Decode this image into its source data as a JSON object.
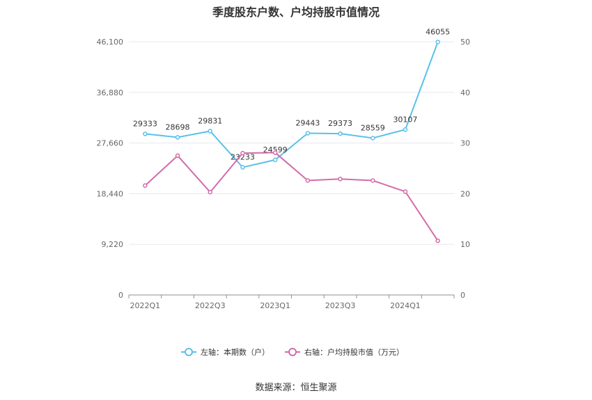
{
  "title": "季度股东户数、户均持股市值情况",
  "source": "数据来源：恒生聚源",
  "chart_data": {
    "type": "line",
    "x": [
      "2022Q1",
      "2022Q2",
      "2022Q3",
      "2022Q4",
      "2023Q1",
      "2023Q2",
      "2023Q3",
      "2023Q4",
      "2024Q1",
      "2024Q2"
    ],
    "x_tick_labels": [
      "2022Q1",
      "2022Q3",
      "2023Q1",
      "2023Q3",
      "2024Q1"
    ],
    "y_left": {
      "ticks": [
        0,
        9220,
        18440,
        27660,
        36880,
        46100
      ],
      "tick_labels": [
        "0",
        "9,220",
        "18,440",
        "27,660",
        "36,880",
        "46,100"
      ],
      "ylim": [
        0,
        46100
      ]
    },
    "y_right": {
      "ticks": [
        0,
        10,
        20,
        30,
        40,
        50
      ],
      "tick_labels": [
        "0",
        "10",
        "20",
        "30",
        "40",
        "50"
      ],
      "ylim": [
        0,
        50
      ]
    },
    "series": [
      {
        "name": "左轴：本期数（户）",
        "axis": "left",
        "color": "#5bc0eb",
        "values": [
          29333,
          28698,
          29831,
          23233,
          24599,
          29443,
          29373,
          28559,
          30107,
          46055
        ],
        "data_labels": [
          "29333",
          "28698",
          "29831",
          "23233",
          "24599",
          "29443",
          "29373",
          "28559",
          "30107",
          "46055"
        ]
      },
      {
        "name": "右轴：户均持股市值（万元）",
        "axis": "right",
        "color": "#d36bab",
        "values": [
          21.6,
          27.5,
          20.3,
          28.0,
          28.1,
          22.6,
          22.9,
          22.6,
          20.4,
          10.7
        ]
      }
    ],
    "grid": true,
    "legend_position": "bottom-center"
  }
}
